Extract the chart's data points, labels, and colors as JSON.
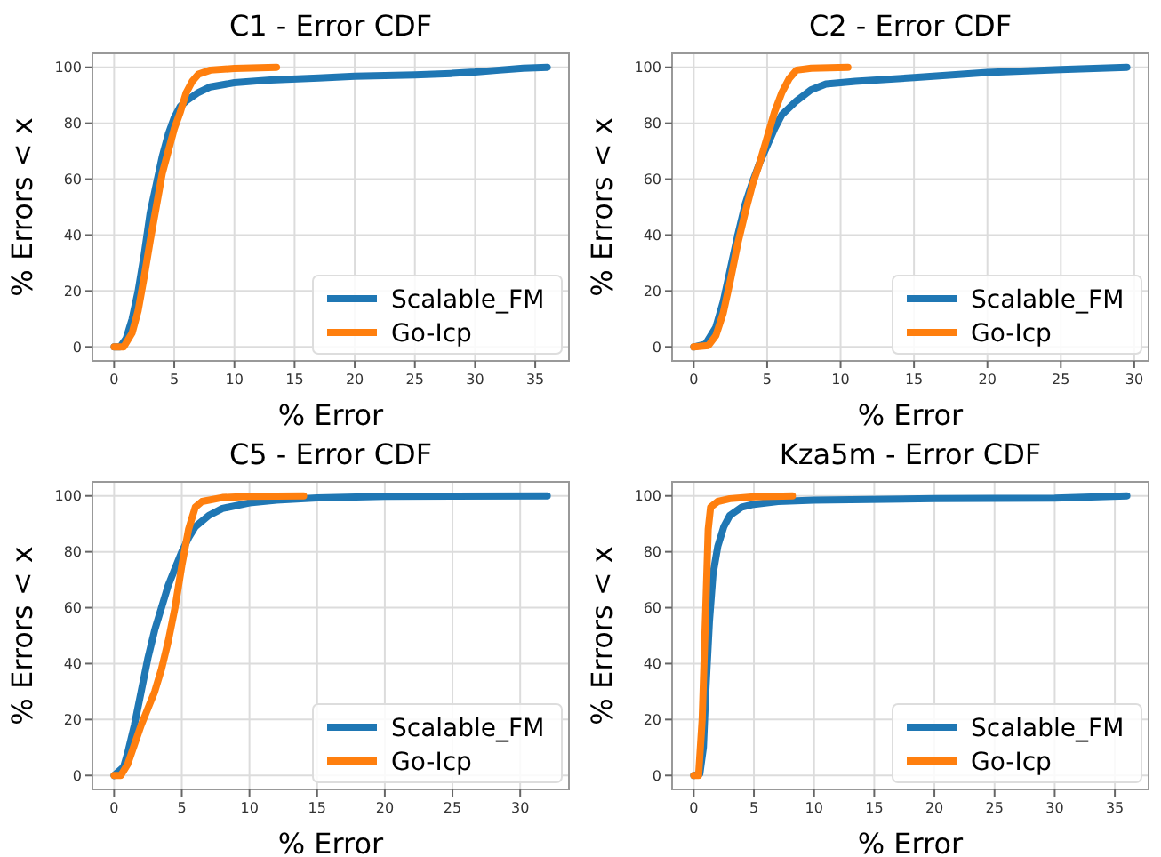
{
  "chart_data": [
    {
      "type": "line",
      "title": "C1 - Error CDF",
      "xlabel": "% Error",
      "ylabel": "% Errors < x",
      "xlim": [
        -1.8,
        37.8
      ],
      "xticks": [
        0,
        5,
        10,
        15,
        20,
        25,
        30,
        35
      ],
      "ylim": [
        -5,
        105
      ],
      "yticks": [
        0,
        20,
        40,
        60,
        80,
        100
      ],
      "grid": true,
      "legend": "bottom right",
      "line_style": "solid",
      "series": [
        {
          "name": "Scalable_FM",
          "color": "#1f77b4",
          "x": [
            0,
            0.5,
            1,
            1.5,
            2,
            2.5,
            3,
            3.5,
            4,
            4.5,
            5,
            5.5,
            6,
            7,
            8,
            10,
            13,
            17,
            20,
            25,
            28,
            30,
            32,
            34,
            36
          ],
          "values": [
            0,
            0,
            3,
            10,
            20,
            33,
            48,
            58,
            68,
            76,
            82,
            86,
            88,
            91,
            93,
            94.5,
            95.5,
            96.2,
            96.8,
            97.3,
            97.8,
            98.3,
            99,
            99.7,
            100
          ]
        },
        {
          "name": "Go-Icp",
          "color": "#ff7f0e",
          "x": [
            0,
            0.8,
            1.5,
            2,
            2.5,
            3,
            3.5,
            4,
            4.5,
            5,
            5.5,
            6,
            6.5,
            7,
            8,
            10,
            13.5
          ],
          "values": [
            0,
            0,
            5,
            13,
            25,
            38,
            50,
            62,
            70,
            78,
            84,
            91,
            95,
            97.5,
            99,
            99.6,
            100
          ]
        }
      ]
    },
    {
      "type": "line",
      "title": "C2 - Error CDF",
      "xlabel": "% Error",
      "ylabel": "% Errors < x",
      "xlim": [
        -1.475,
        30.975
      ],
      "xticks": [
        0,
        5,
        10,
        15,
        20,
        25,
        30
      ],
      "ylim": [
        -5,
        105
      ],
      "yticks": [
        0,
        20,
        40,
        60,
        80,
        100
      ],
      "grid": true,
      "legend": "bottom right",
      "line_style": "solid",
      "series": [
        {
          "name": "Scalable_FM",
          "color": "#1f77b4",
          "x": [
            0,
            0.8,
            1.5,
            2,
            2.5,
            3,
            3.5,
            4,
            4.5,
            5,
            5.5,
            6,
            7,
            8,
            9,
            11,
            15,
            20,
            25,
            29.5
          ],
          "values": [
            0,
            1,
            7,
            16,
            28,
            40,
            51,
            59,
            66,
            72,
            78,
            83,
            88,
            92,
            94,
            95,
            96.3,
            98.2,
            99.2,
            100
          ]
        },
        {
          "name": "Go-Icp",
          "color": "#ff7f0e",
          "x": [
            0,
            1,
            1.5,
            2,
            2.5,
            3,
            3.5,
            4,
            4.5,
            5,
            5.5,
            6,
            6.5,
            7,
            8,
            10.5
          ],
          "values": [
            0,
            0.5,
            4,
            12,
            24,
            37,
            48,
            58,
            66,
            75,
            84,
            91,
            96,
            99,
            99.7,
            100
          ]
        }
      ]
    },
    {
      "type": "line",
      "title": "C5 - Error CDF",
      "xlabel": "% Error",
      "ylabel": "% Errors < x",
      "xlim": [
        -1.6,
        33.6
      ],
      "xticks": [
        0,
        5,
        10,
        15,
        20,
        25,
        30
      ],
      "ylim": [
        -5,
        105
      ],
      "yticks": [
        0,
        20,
        40,
        60,
        80,
        100
      ],
      "grid": true,
      "legend": "bottom right",
      "line_style": "solid",
      "series": [
        {
          "name": "Scalable_FM",
          "color": "#1f77b4",
          "x": [
            0,
            0.7,
            1,
            1.5,
            2,
            2.5,
            3,
            3.5,
            4,
            4.5,
            5,
            5.5,
            6,
            7,
            8,
            10,
            12,
            15,
            20,
            32
          ],
          "values": [
            0,
            3,
            8,
            18,
            30,
            42,
            52,
            60,
            68,
            74,
            80,
            85,
            89,
            93,
            95.5,
            97.5,
            98.5,
            99.3,
            99.8,
            100
          ]
        },
        {
          "name": "Go-Icp",
          "color": "#ff7f0e",
          "x": [
            0,
            0.5,
            1,
            1.5,
            2,
            2.5,
            3,
            3.5,
            4,
            4.5,
            5,
            5.5,
            6,
            6.5,
            8,
            10,
            14
          ],
          "values": [
            0,
            0,
            4,
            11,
            18,
            24,
            30,
            38,
            48,
            60,
            75,
            88,
            96,
            98,
            99.4,
            99.8,
            100
          ]
        }
      ]
    },
    {
      "type": "line",
      "title": "Kza5m - Error CDF",
      "xlabel": "% Error",
      "ylabel": "% Errors < x",
      "xlim": [
        -1.8,
        37.8
      ],
      "xticks": [
        0,
        5,
        10,
        15,
        20,
        25,
        30,
        35
      ],
      "ylim": [
        -5,
        105
      ],
      "yticks": [
        0,
        20,
        40,
        60,
        80,
        100
      ],
      "grid": true,
      "legend": "bottom right",
      "line_style": "solid",
      "series": [
        {
          "name": "Scalable_FM",
          "color": "#1f77b4",
          "x": [
            0,
            0.5,
            0.8,
            1,
            1.3,
            1.6,
            2,
            2.5,
            3,
            4,
            5,
            7,
            10,
            20,
            30,
            36
          ],
          "values": [
            0,
            0.5,
            10,
            30,
            55,
            72,
            82,
            89,
            93,
            96,
            97,
            98,
            98.5,
            99,
            99.2,
            100
          ]
        },
        {
          "name": "Go-Icp",
          "color": "#ff7f0e",
          "x": [
            0,
            0.4,
            0.7,
            1,
            1.2,
            1.4,
            2,
            3,
            5,
            8.2
          ],
          "values": [
            0,
            0,
            20,
            60,
            88,
            96,
            98,
            99,
            99.7,
            100
          ]
        }
      ]
    }
  ]
}
